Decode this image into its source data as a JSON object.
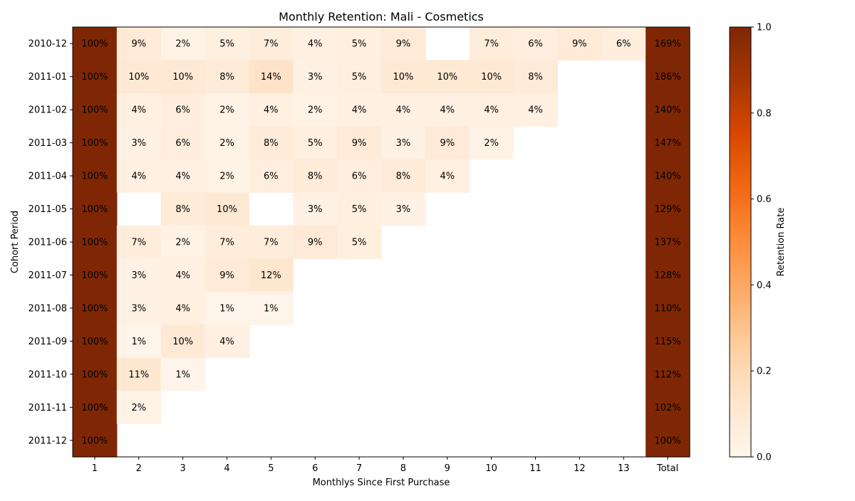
{
  "chart_data": {
    "type": "heatmap",
    "title": "Monthly Retention: Mali - Cosmetics",
    "xlabel": "Monthlys Since First Purchase",
    "ylabel": "Cohort Period",
    "colorbar_label": "Retention Rate",
    "colormap": "Oranges",
    "color_range": [
      0,
      1
    ],
    "colorbar_ticks": [
      "0.0",
      "0.2",
      "0.4",
      "0.6",
      "0.8",
      "1.0"
    ],
    "x_categories": [
      "1",
      "2",
      "3",
      "4",
      "5",
      "6",
      "7",
      "8",
      "9",
      "10",
      "11",
      "12",
      "13",
      "Total"
    ],
    "y_categories": [
      "2010-12",
      "2011-01",
      "2011-02",
      "2011-03",
      "2011-04",
      "2011-05",
      "2011-06",
      "2011-07",
      "2011-08",
      "2011-09",
      "2011-10",
      "2011-11",
      "2011-12"
    ],
    "values": [
      [
        1.0,
        0.09,
        0.02,
        0.05,
        0.07,
        0.04,
        0.05,
        0.09,
        null,
        0.07,
        0.06,
        0.09,
        0.06,
        1.69
      ],
      [
        1.0,
        0.1,
        0.1,
        0.08,
        0.14,
        0.03,
        0.05,
        0.1,
        0.1,
        0.1,
        0.08,
        null,
        null,
        1.86
      ],
      [
        1.0,
        0.04,
        0.06,
        0.02,
        0.04,
        0.02,
        0.04,
        0.04,
        0.04,
        0.04,
        0.04,
        null,
        null,
        1.4
      ],
      [
        1.0,
        0.03,
        0.06,
        0.02,
        0.08,
        0.05,
        0.09,
        0.03,
        0.09,
        0.02,
        null,
        null,
        null,
        1.47
      ],
      [
        1.0,
        0.04,
        0.04,
        0.02,
        0.06,
        0.08,
        0.06,
        0.08,
        0.04,
        null,
        null,
        null,
        null,
        1.4
      ],
      [
        1.0,
        null,
        0.08,
        0.1,
        null,
        0.03,
        0.05,
        0.03,
        null,
        null,
        null,
        null,
        null,
        1.29
      ],
      [
        1.0,
        0.07,
        0.02,
        0.07,
        0.07,
        0.09,
        0.05,
        null,
        null,
        null,
        null,
        null,
        null,
        1.37
      ],
      [
        1.0,
        0.03,
        0.04,
        0.09,
        0.12,
        null,
        null,
        null,
        null,
        null,
        null,
        null,
        null,
        1.28
      ],
      [
        1.0,
        0.03,
        0.04,
        0.01,
        0.01,
        null,
        null,
        null,
        null,
        null,
        null,
        null,
        null,
        1.1
      ],
      [
        1.0,
        0.01,
        0.1,
        0.04,
        null,
        null,
        null,
        null,
        null,
        null,
        null,
        null,
        null,
        1.15
      ],
      [
        1.0,
        0.11,
        0.01,
        null,
        null,
        null,
        null,
        null,
        null,
        null,
        null,
        null,
        null,
        1.12
      ],
      [
        1.0,
        0.02,
        null,
        null,
        null,
        null,
        null,
        null,
        null,
        null,
        null,
        null,
        null,
        1.02
      ],
      [
        1.0,
        null,
        null,
        null,
        null,
        null,
        null,
        null,
        null,
        null,
        null,
        null,
        null,
        1.0
      ]
    ]
  }
}
